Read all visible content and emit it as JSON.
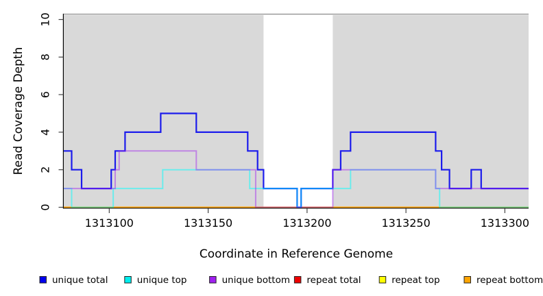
{
  "chart_data": {
    "type": "line",
    "subtype": "step-function-coverage",
    "title": "",
    "xlabel": "Coordinate in Reference Genome",
    "ylabel": "Read Coverage Depth",
    "xlim": [
      1313077,
      1313312
    ],
    "ylim": [
      0,
      10
    ],
    "x_ticks": [
      1313100,
      1313150,
      1313200,
      1313250,
      1313300
    ],
    "x_tick_labels": [
      "1313100",
      "1313150",
      "1313200",
      "1313250",
      "1313300"
    ],
    "y_ticks": [
      0,
      2,
      4,
      6,
      8,
      10
    ],
    "y_tick_labels": [
      "0",
      "2",
      "4",
      "6",
      "8",
      "10"
    ],
    "grid": false,
    "plot_bg_color": "#D9D9D9",
    "highlight_band": {
      "x0": 1313178,
      "x1": 1313213,
      "color": "#FFFFFF"
    },
    "series": [
      {
        "name": "repeat total",
        "color": "#EE0000",
        "opacity": 1,
        "width": 2,
        "steps": [
          [
            1313077,
            0
          ]
        ]
      },
      {
        "name": "repeat top",
        "color": "#FFFF00",
        "opacity": 1,
        "width": 2,
        "steps": [
          [
            1313077,
            0
          ]
        ]
      },
      {
        "name": "repeat bottom",
        "color": "#FFA500",
        "opacity": 1,
        "width": 2,
        "steps": [
          [
            1313077,
            0
          ]
        ]
      },
      {
        "name": "unique total",
        "color": "#0000EE",
        "opacity": 0.88,
        "width": 2.2,
        "steps": [
          [
            1313077,
            3
          ],
          [
            1313081,
            2
          ],
          [
            1313086,
            1
          ],
          [
            1313101,
            2
          ],
          [
            1313103,
            3
          ],
          [
            1313108,
            4
          ],
          [
            1313126,
            5
          ],
          [
            1313144,
            4
          ],
          [
            1313170,
            3
          ],
          [
            1313175,
            2
          ],
          [
            1313178,
            1
          ],
          [
            1313195,
            0
          ],
          [
            1313197,
            1
          ],
          [
            1313213,
            2
          ],
          [
            1313217,
            3
          ],
          [
            1313222,
            4
          ],
          [
            1313265,
            3
          ],
          [
            1313268,
            2
          ],
          [
            1313272,
            1
          ],
          [
            1313283,
            2
          ],
          [
            1313288,
            1
          ]
        ]
      },
      {
        "name": "unique top",
        "color": "#00FFFF",
        "opacity": 0.5,
        "width": 2,
        "steps": [
          [
            1313077,
            1
          ],
          [
            1313081,
            0
          ],
          [
            1313102,
            1
          ],
          [
            1313127,
            2
          ],
          [
            1313171,
            1
          ],
          [
            1313195,
            0
          ],
          [
            1313197,
            1
          ],
          [
            1313222,
            2
          ],
          [
            1313265,
            1
          ],
          [
            1313267,
            0
          ]
        ]
      },
      {
        "name": "unique bottom",
        "color": "#A020F0",
        "opacity": 0.45,
        "width": 2,
        "steps": [
          [
            1313077,
            1
          ],
          [
            1313103,
            2
          ],
          [
            1313105,
            3
          ],
          [
            1313144,
            2
          ],
          [
            1313174,
            0
          ],
          [
            1313213,
            2
          ],
          [
            1313265,
            1
          ]
        ]
      }
    ],
    "legend": {
      "position": "bottom",
      "entries": [
        {
          "label": "unique total",
          "color": "#0000EE"
        },
        {
          "label": "unique top",
          "color": "#00EEEE"
        },
        {
          "label": "unique bottom",
          "color": "#A020F0"
        },
        {
          "label": "repeat total",
          "color": "#EE0000"
        },
        {
          "label": "repeat top",
          "color": "#FFFF00"
        },
        {
          "label": "repeat bottom",
          "color": "#FFA500"
        }
      ]
    }
  }
}
